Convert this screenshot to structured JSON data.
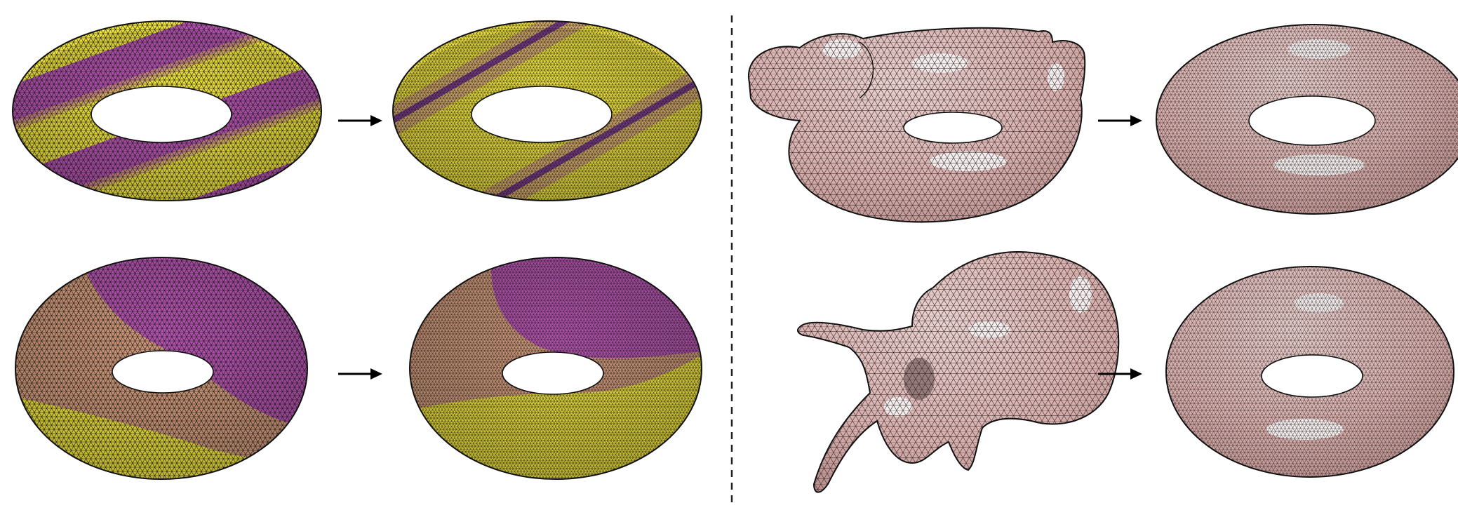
{
  "figure": {
    "panels_left": [
      {
        "name": "torus-swirl-stripes-input",
        "palette": [
          "#f0e43a",
          "#b552b0"
        ]
      },
      {
        "name": "torus-swirl-stripes-output",
        "palette": [
          "#f0e43a",
          "#b552b0"
        ]
      },
      {
        "name": "torus-blocky-input",
        "palette": [
          "#f0e43a",
          "#b552b0",
          "#d39a7a"
        ]
      },
      {
        "name": "torus-blocky-output",
        "palette": [
          "#f0e43a",
          "#b552b0",
          "#d39a7a"
        ]
      }
    ],
    "panels_right": [
      {
        "name": "duck-float-input",
        "color": "#d8b0ae"
      },
      {
        "name": "duck-float-torus-output",
        "color": "#d8b0ae"
      },
      {
        "name": "vertebra-input",
        "color": "#d8b0ae"
      },
      {
        "name": "vertebra-torus-output",
        "color": "#d8b0ae"
      }
    ],
    "colors": {
      "yellow": "#f0e43a",
      "magenta": "#b552b0",
      "tan": "#d39a7a",
      "pink": "#d8b0ae",
      "pink_highlight": "#f4eeee",
      "mesh_line": "#1a1a1a"
    },
    "arrow_icon": "right-arrow-icon",
    "separator": "dashed-vertical-line"
  }
}
